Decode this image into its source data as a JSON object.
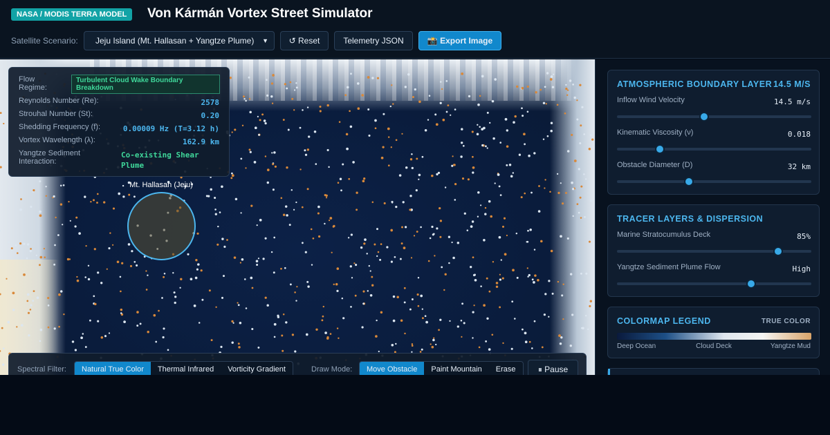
{
  "header": {
    "badge": "NASA / MODIS TERRA MODEL",
    "title": "Von Kármán Vortex Street Simulator"
  },
  "controls": {
    "scenario_label": "Satellite Scenario:",
    "scenario_value": "Jeju Island (Mt. Hallasan + Yangtze Plume)",
    "buttons": [
      "↺ Reset",
      "Telemetry JSON",
      "📸 Export Image"
    ]
  },
  "stats": {
    "regime_label": "Flow Regime:",
    "regime_value": "Turbulent Cloud Wake Boundary Breakdown",
    "rows": [
      {
        "label": "Reynolds Number (Re):",
        "value": "2578"
      },
      {
        "label": "Strouhal Number (St):",
        "value": "0.20"
      },
      {
        "label": "Shedding Frequency (f):",
        "value": "0.00009 Hz (T=3.12 h)"
      },
      {
        "label": "Vortex Wavelength (λ):",
        "value": "162.9 km"
      },
      {
        "label": "Yangtze Sediment Interaction:",
        "value": "Co-existing Shear Plume"
      }
    ]
  },
  "obstacle_label": "Mt. Hallasan (Jeju)",
  "toolbar": {
    "spectral_label": "Spectral Filter:",
    "spectral_options": [
      "Natural True Color",
      "Thermal Infrared",
      "Vorticity Gradient"
    ],
    "draw_label": "Draw Mode:",
    "draw_options": [
      "Move Obstacle",
      "Paint Mountain",
      "Erase"
    ],
    "pause": "⏸ Pause"
  },
  "panels": {
    "atmosphere": {
      "title": "ATMOSPHERIC BOUNDARY LAYER",
      "badge": "14.5 M/S",
      "sliders": [
        {
          "label": "Inflow Wind Velocity",
          "value": "14.5 m/s"
        },
        {
          "label": "Kinematic Viscosity (ν)",
          "value": "0.018"
        },
        {
          "label": "Obstacle Diameter (D)",
          "value": "32 km"
        }
      ]
    },
    "tracer": {
      "title": "TRACER LAYERS & DISPERSION",
      "sliders": [
        {
          "label": "Marine Stratocumulus Deck",
          "value": "85%"
        },
        {
          "label": "Yangtze Sediment Plume Flow",
          "value": "High"
        }
      ]
    },
    "legend": {
      "title": "COLORMAP LEGEND",
      "badge": "TRUE COLOR",
      "stops": [
        "Deep Ocean",
        "Cloud Deck",
        "Yangtze Mud"
      ]
    }
  }
}
